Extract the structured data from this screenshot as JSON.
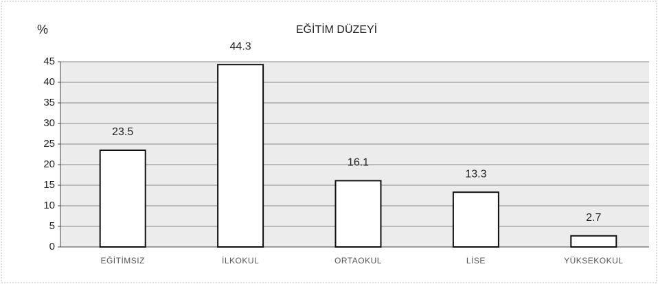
{
  "chart_data": {
    "type": "bar",
    "title": "EĞİTİM DÜZEYİ",
    "y_label": "%",
    "categories": [
      "EĞİTİMSIZ",
      "İLKOKUL",
      "ORTAOKUL",
      "LİSE",
      "YÜKSEKOKUL"
    ],
    "values": [
      23.5,
      44.3,
      16.1,
      13.3,
      2.7
    ],
    "color": "#ffffff",
    "ylim": [
      0,
      45
    ],
    "yticks": [
      0,
      5,
      10,
      15,
      20,
      25,
      30,
      35,
      40,
      45
    ],
    "grid": true
  }
}
